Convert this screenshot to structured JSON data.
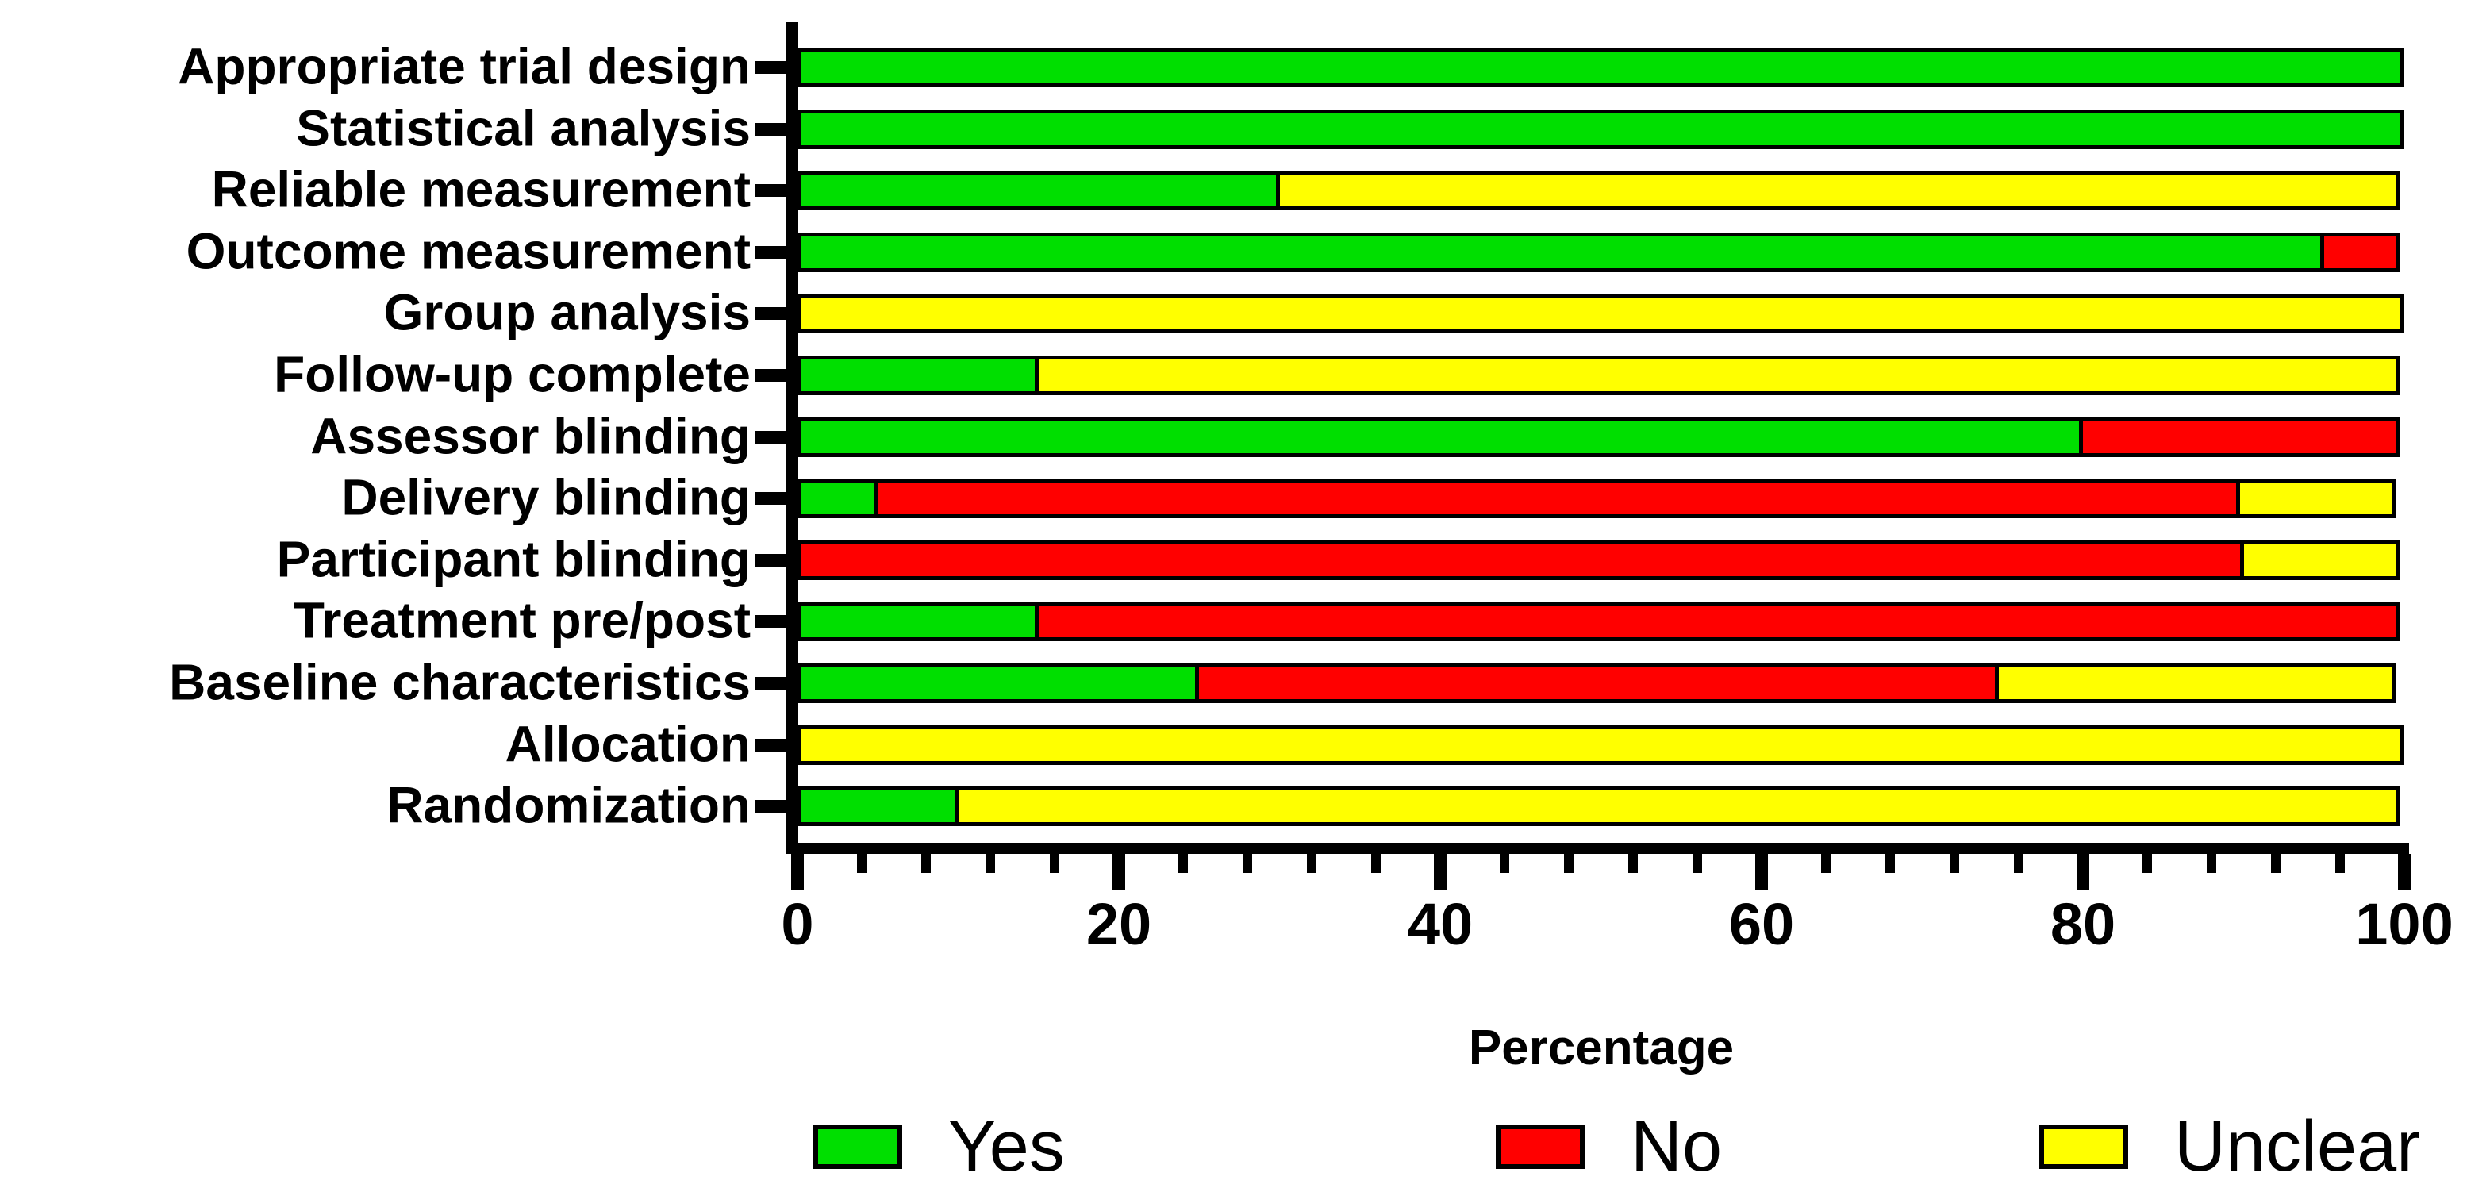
{
  "chart_data": {
    "type": "bar",
    "orientation": "horizontal",
    "stacked": true,
    "title": "",
    "xlabel": "Percentage",
    "ylabel": "",
    "xlim": [
      0,
      100
    ],
    "x_major_ticks": [
      0,
      20,
      40,
      60,
      80,
      100
    ],
    "x_minor_tick_step": 4,
    "grid": false,
    "legend_position": "bottom",
    "categories": [
      "Appropriate trial design",
      "Statistical analysis",
      "Reliable measurement",
      "Outcome measurement",
      "Group analysis",
      "Follow-up complete",
      "Assessor blinding",
      "Delivery blinding",
      "Participant blinding",
      "Treatment pre/post",
      "Baseline characteristics",
      "Allocation",
      "Randomization"
    ],
    "series": [
      {
        "name": "Yes",
        "color": "#00DF00",
        "values": [
          100,
          100,
          30,
          95,
          0,
          15,
          80,
          5,
          0,
          15,
          25,
          0,
          10
        ]
      },
      {
        "name": "No",
        "color": "#FF0000",
        "values": [
          0,
          0,
          0,
          5,
          0,
          0,
          20,
          85,
          90,
          85,
          50,
          0,
          0
        ]
      },
      {
        "name": "Unclear",
        "color": "#FFFF00",
        "values": [
          0,
          0,
          70,
          0,
          100,
          85,
          0,
          10,
          10,
          0,
          25,
          100,
          90
        ]
      }
    ]
  },
  "legend": {
    "items": [
      {
        "label": "Yes",
        "color": "#00DF00"
      },
      {
        "label": "No",
        "color": "#FF0000"
      },
      {
        "label": "Unclear",
        "color": "#FFFF00"
      }
    ]
  },
  "colors": {
    "axis": "#000000",
    "background": "#ffffff"
  }
}
